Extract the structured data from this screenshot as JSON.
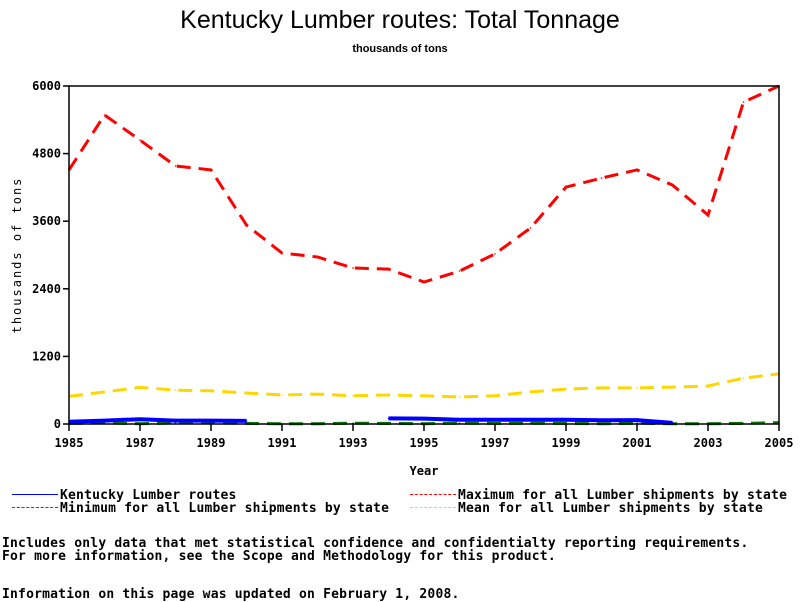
{
  "colors": {
    "kentucky": "#0000ff",
    "minimum": "#007a00",
    "maximum": "#ff0000",
    "mean": "#ffd700",
    "axis": "#000000"
  },
  "chart_data": {
    "type": "line",
    "title": "Kentucky Lumber routes: Total Tonnage",
    "subtitle": "thousands of tons",
    "xlabel": "Year",
    "ylabel": "thousands of tons",
    "xlim": [
      1985,
      2005
    ],
    "ylim": [
      0,
      6000
    ],
    "grid": false,
    "legend_position": "bottom",
    "x_ticks": [
      1985,
      1987,
      1989,
      1991,
      1993,
      1995,
      1997,
      1999,
      2001,
      2003,
      2005
    ],
    "x_tick_labels": [
      "1985",
      "1987",
      "1989",
      "1991",
      "1993",
      "1995",
      "1997",
      "1999",
      "2001",
      "2003",
      "2005"
    ],
    "y_ticks": [
      0,
      1200,
      2400,
      3600,
      4800,
      6000
    ],
    "y_tick_labels": [
      "0",
      "1200",
      "2400",
      "3600",
      "4800",
      "6000"
    ],
    "x": [
      1985,
      1986,
      1987,
      1988,
      1989,
      1990,
      1991,
      1992,
      1993,
      1994,
      1995,
      1996,
      1997,
      1998,
      1999,
      2000,
      2001,
      2002,
      2003,
      2004,
      2005
    ],
    "series": [
      {
        "name": "Kentucky Lumber routes",
        "style": "solid",
        "color_key": "kentucky",
        "values": [
          40,
          60,
          85,
          60,
          60,
          55,
          null,
          null,
          null,
          100,
          95,
          75,
          75,
          75,
          75,
          65,
          70,
          20,
          null,
          null,
          null
        ]
      },
      {
        "name": "Minimum for all Lumber shipments by state",
        "style": "dashed",
        "color_key": "minimum",
        "values": [
          10,
          20,
          5,
          20,
          20,
          10,
          5,
          5,
          15,
          10,
          5,
          15,
          10,
          15,
          10,
          5,
          15,
          5,
          5,
          10,
          25
        ]
      },
      {
        "name": "Maximum for all Lumber shipments by state",
        "style": "dashed",
        "color_key": "maximum",
        "values": [
          4510,
          5485,
          5040,
          4580,
          4510,
          3530,
          3035,
          2965,
          2770,
          2750,
          2520,
          2715,
          3020,
          3480,
          4205,
          4365,
          4510,
          4240,
          3710,
          5715,
          6000
        ]
      },
      {
        "name": "Mean for all Lumber shipments by state",
        "style": "dashed",
        "color_key": "mean",
        "values": [
          490,
          570,
          650,
          600,
          590,
          550,
          515,
          530,
          500,
          515,
          500,
          480,
          500,
          570,
          620,
          640,
          640,
          655,
          675,
          815,
          890
        ]
      }
    ]
  },
  "legend": [
    {
      "label": "Kentucky Lumber routes",
      "color_key": "kentucky",
      "style": "solid"
    },
    {
      "label": "Maximum for all Lumber shipments by state",
      "color_key": "maximum",
      "style": "dashed"
    },
    {
      "label": "Minimum for all Lumber shipments by state",
      "color_key": "minimum",
      "style": "dashed"
    },
    {
      "label": "Mean for all Lumber shipments by state",
      "color_key": "mean",
      "style": "dashed"
    }
  ],
  "footer": {
    "note_line1": "Includes only data that met statistical confidence and confidentialty reporting requirements.",
    "note_line2": "For more information, see the Scope and Methodology for this product.",
    "updated": "Information on this page was updated on February 1, 2008."
  }
}
